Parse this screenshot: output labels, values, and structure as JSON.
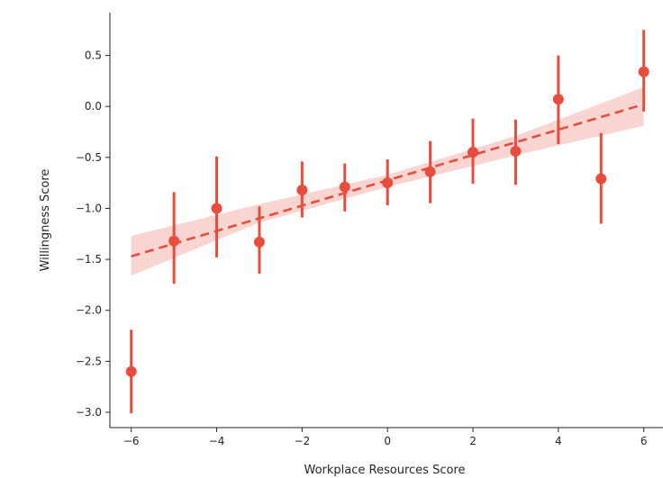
{
  "chart_data": {
    "type": "scatter",
    "xlabel": "Workplace Resources Score",
    "ylabel": "Willingness Score",
    "xlim": [
      -6.5,
      6.45
    ],
    "ylim": [
      -3.15,
      0.92
    ],
    "x_ticks": [
      -6,
      -4,
      -2,
      0,
      2,
      4,
      6
    ],
    "x_tick_labels": [
      "−6",
      "−4",
      "−2",
      "0",
      "2",
      "4",
      "6"
    ],
    "y_ticks": [
      0.5,
      0.0,
      -0.5,
      -1.0,
      -1.5,
      -2.0,
      -2.5,
      -3.0
    ],
    "y_tick_labels": [
      "0.5",
      "0.0",
      "−0.5",
      "−1.0",
      "−1.5",
      "−2.0",
      "−2.5",
      "−3.0"
    ],
    "grid": false,
    "color": "#e74c3c",
    "band_color": "#f8d5d1",
    "points": [
      {
        "x": -6,
        "y": -2.6,
        "ci": [
          -3.01,
          -2.19
        ]
      },
      {
        "x": -5,
        "y": -1.32,
        "ci": [
          -1.74,
          -0.84
        ]
      },
      {
        "x": -4,
        "y": -1.0,
        "ci": [
          -1.48,
          -0.49
        ]
      },
      {
        "x": -3,
        "y": -1.33,
        "ci": [
          -1.64,
          -0.98
        ]
      },
      {
        "x": -2,
        "y": -0.82,
        "ci": [
          -1.09,
          -0.54
        ]
      },
      {
        "x": -1,
        "y": -0.79,
        "ci": [
          -1.03,
          -0.56
        ]
      },
      {
        "x": 0,
        "y": -0.75,
        "ci": [
          -0.97,
          -0.52
        ]
      },
      {
        "x": 1,
        "y": -0.64,
        "ci": [
          -0.95,
          -0.34
        ]
      },
      {
        "x": 2,
        "y": -0.45,
        "ci": [
          -0.76,
          -0.12
        ]
      },
      {
        "x": 3,
        "y": -0.44,
        "ci": [
          -0.77,
          -0.13
        ]
      },
      {
        "x": 4,
        "y": 0.07,
        "ci": [
          -0.37,
          0.5
        ]
      },
      {
        "x": 5,
        "y": -0.71,
        "ci": [
          -1.15,
          -0.26
        ]
      },
      {
        "x": 6,
        "y": 0.34,
        "ci": [
          -0.05,
          0.75
        ]
      }
    ],
    "fit_line": {
      "x": [
        -6,
        6
      ],
      "y": [
        -1.47,
        0.02
      ]
    },
    "fit_band": {
      "x": [
        -6,
        -3,
        0,
        3,
        6
      ],
      "lower": [
        -1.66,
        -1.14,
        -0.79,
        -0.48,
        -0.19
      ],
      "upper": [
        -1.27,
        -0.96,
        -0.67,
        -0.29,
        0.19
      ]
    }
  }
}
